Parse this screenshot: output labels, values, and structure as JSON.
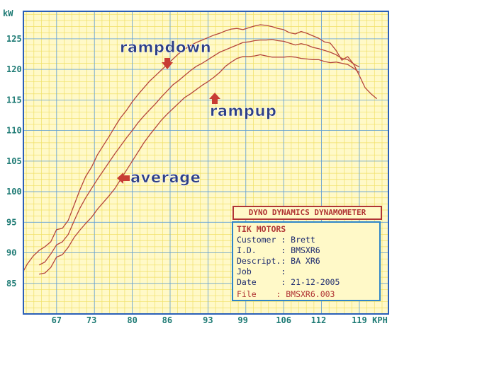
{
  "chart_data": {
    "type": "line",
    "ylabel": "kW",
    "xlabel": "KPH",
    "ylim": [
      80,
      129.5
    ],
    "xlim": [
      61.3,
      124
    ],
    "yticks": [
      85,
      90,
      95,
      100,
      105,
      110,
      115,
      120,
      125
    ],
    "xticks": [
      67,
      73,
      80,
      86,
      93,
      99,
      106,
      112,
      119
    ],
    "grid": true,
    "series": [
      {
        "name": "rampdown",
        "color": "#b5463c",
        "x": [
          61.3,
          62,
          63,
          64,
          65,
          66,
          67,
          68,
          69,
          70,
          71,
          72,
          73,
          74,
          75,
          76,
          77,
          78,
          79,
          80,
          81,
          82,
          83,
          84,
          85,
          86,
          87,
          88,
          89,
          90,
          91,
          92,
          93,
          94,
          95,
          96,
          97,
          98,
          99,
          100,
          101,
          102,
          103,
          104,
          105,
          106,
          107,
          108,
          109,
          110,
          111,
          112,
          113,
          114,
          115,
          116,
          117,
          118,
          119,
          120,
          121,
          122
        ],
        "y": [
          87.0,
          88.2,
          89.5,
          90.4,
          91.0,
          91.8,
          93.8,
          94.0,
          95.3,
          97.8,
          100.3,
          102.5,
          104.0,
          106.0,
          107.5,
          109.0,
          110.6,
          112.1,
          113.3,
          114.7,
          115.9,
          117.0,
          118.1,
          119.0,
          119.9,
          120.8,
          121.7,
          122.6,
          123.3,
          123.9,
          124.4,
          124.8,
          125.2,
          125.6,
          125.9,
          126.3,
          126.6,
          126.7,
          126.5,
          126.8,
          127.1,
          127.3,
          127.2,
          127.0,
          126.7,
          126.5,
          126.0,
          125.8,
          126.2,
          125.9,
          125.5,
          125.1,
          124.5,
          124.3,
          123.1,
          121.5,
          122.1,
          120.9,
          119.0,
          117.0,
          116.0,
          115.2
        ]
      },
      {
        "name": "average",
        "color": "#b5463c",
        "x": [
          64,
          65,
          66,
          67,
          68,
          69,
          70,
          71,
          72,
          73,
          74,
          75,
          76,
          77,
          78,
          79,
          80,
          81,
          82,
          83,
          84,
          85,
          86,
          87,
          88,
          89,
          90,
          91,
          92,
          93,
          94,
          95,
          96,
          97,
          98,
          99,
          100,
          101,
          102,
          103,
          104,
          105,
          106,
          107,
          108,
          109,
          110,
          111,
          112,
          113,
          114,
          115,
          116,
          117,
          118,
          119
        ],
        "y": [
          88.0,
          88.5,
          89.8,
          91.3,
          91.8,
          93.0,
          95.2,
          97.3,
          99.0,
          100.5,
          102.0,
          103.4,
          104.8,
          106.2,
          107.5,
          108.8,
          110.0,
          111.3,
          112.4,
          113.4,
          114.4,
          115.5,
          116.5,
          117.5,
          118.2,
          119.0,
          119.8,
          120.5,
          121.0,
          121.6,
          122.2,
          122.8,
          123.2,
          123.6,
          124.0,
          124.4,
          124.5,
          124.7,
          124.8,
          124.8,
          124.9,
          124.7,
          124.6,
          124.3,
          124.0,
          124.2,
          124.0,
          123.6,
          123.4,
          123.1,
          122.8,
          122.4,
          121.8,
          121.6,
          120.9,
          120.4
        ]
      },
      {
        "name": "rampup",
        "color": "#b5463c",
        "x": [
          64,
          65,
          66,
          67,
          68,
          69,
          70,
          71,
          72,
          73,
          74,
          75,
          76,
          77,
          78,
          79,
          80,
          81,
          82,
          83,
          84,
          85,
          86,
          87,
          88,
          89,
          90,
          91,
          92,
          93,
          94,
          95,
          96,
          97,
          98,
          99,
          100,
          101,
          102,
          103,
          104,
          105,
          106,
          107,
          108,
          109,
          110,
          111,
          112,
          113,
          114,
          115,
          116,
          117,
          118,
          119
        ],
        "y": [
          86.5,
          86.7,
          87.6,
          89.3,
          89.7,
          90.9,
          92.5,
          93.7,
          94.8,
          95.8,
          97.1,
          98.2,
          99.3,
          100.5,
          102.0,
          103.5,
          105.0,
          106.5,
          108.0,
          109.3,
          110.5,
          111.7,
          112.7,
          113.6,
          114.5,
          115.4,
          116.0,
          116.7,
          117.4,
          118.0,
          118.7,
          119.5,
          120.5,
          121.2,
          121.8,
          122.1,
          122.1,
          122.2,
          122.4,
          122.2,
          122.0,
          122.0,
          122.0,
          122.1,
          122.0,
          121.8,
          121.7,
          121.6,
          121.6,
          121.3,
          121.1,
          121.2,
          121.0,
          120.8,
          120.2,
          119.5
        ]
      }
    ],
    "annotations": [
      {
        "text": "rampdown"
      },
      {
        "text": "rampup"
      },
      {
        "text": "average"
      }
    ]
  },
  "info": {
    "title": "DYNO DYNAMICS DYNAMOMETER",
    "company": "TIK MOTORS",
    "lines": [
      "Customer : Brett",
      "I.D.     : BMSXR6",
      "Descript.: BA XR6",
      "Job      :",
      "Date     : 21-12-2005"
    ],
    "file": "File    : BMSXR6.003"
  },
  "colors": {
    "background": "#fff9c8",
    "minor_grid": "#f0e066",
    "major_grid": "#5b9ee0",
    "frame": "#2a5fb8",
    "curve": "#b5463c",
    "arrow": "#c83c34",
    "annotation_text": "#2d3f86",
    "tick_text": "#1d7a74"
  }
}
